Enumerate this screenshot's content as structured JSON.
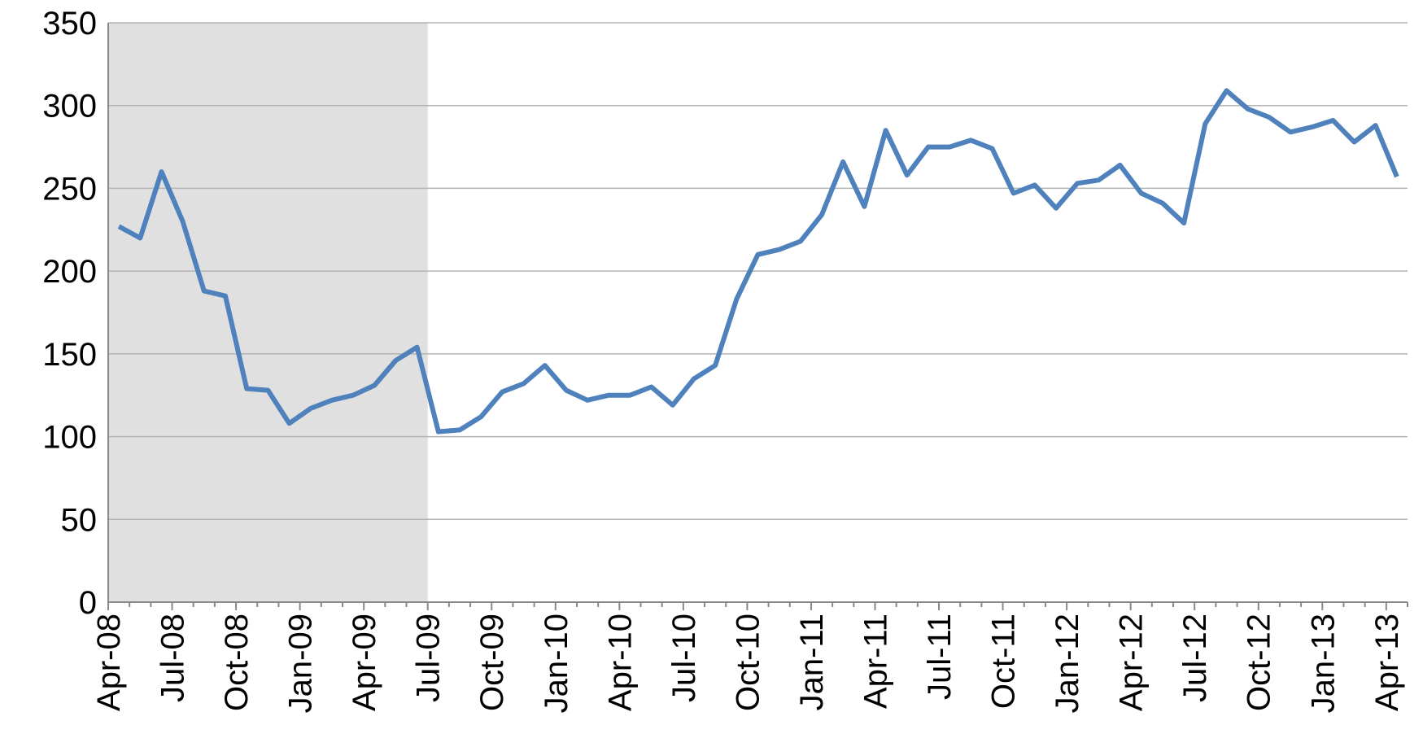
{
  "chart_data": {
    "type": "line",
    "categories": [
      "Apr-08",
      null,
      null,
      "Jul-08",
      null,
      null,
      "Oct-08",
      null,
      null,
      "Jan-09",
      null,
      null,
      "Apr-09",
      null,
      null,
      "Jul-09",
      null,
      null,
      "Oct-09",
      null,
      null,
      "Jan-10",
      null,
      null,
      "Apr-10",
      null,
      null,
      "Jul-10",
      null,
      null,
      "Oct-10",
      null,
      null,
      "Jan-11",
      null,
      null,
      "Apr-11",
      null,
      null,
      "Jul-11",
      null,
      null,
      "Oct-11",
      null,
      null,
      "Jan-12",
      null,
      null,
      "Apr-12",
      null,
      null,
      "Jul-12",
      null,
      null,
      "Oct-12",
      null,
      null,
      "Jan-13",
      null,
      null,
      "Apr-13"
    ],
    "values": [
      227,
      220,
      260,
      230,
      188,
      185,
      129,
      128,
      108,
      117,
      122,
      125,
      131,
      146,
      154,
      103,
      104,
      112,
      127,
      132,
      143,
      128,
      122,
      125,
      125,
      130,
      119,
      135,
      143,
      183,
      210,
      213,
      218,
      234,
      266,
      239,
      285,
      258,
      275,
      275,
      279,
      274,
      247,
      252,
      238,
      253,
      255,
      264,
      247,
      241,
      229,
      289,
      309,
      298,
      293,
      284,
      287,
      291,
      278,
      288,
      257
    ],
    "color": "#4f81bd",
    "shade": [
      0,
      15
    ],
    "ylim": [
      0,
      350
    ],
    "yticks": [
      0,
      50,
      100,
      150,
      200,
      250,
      300,
      350
    ],
    "grid": true
  }
}
